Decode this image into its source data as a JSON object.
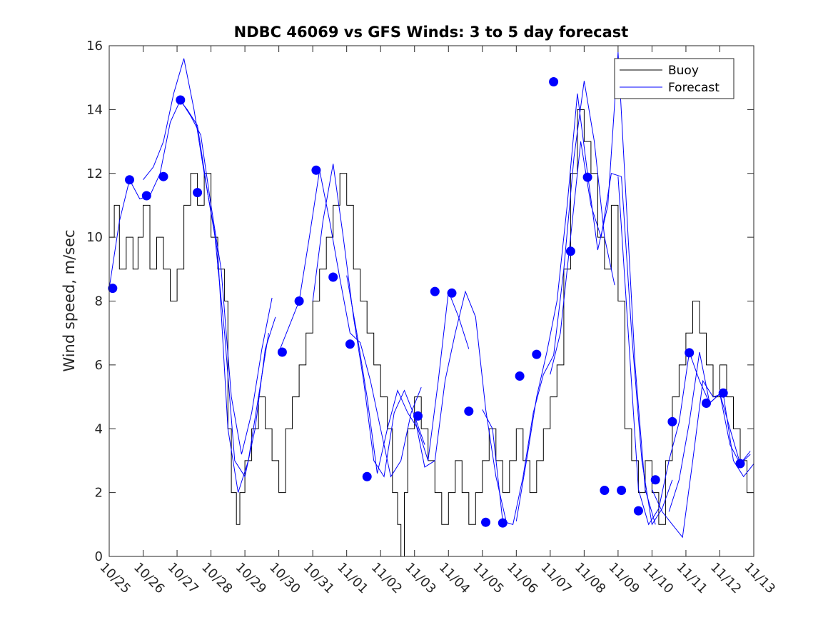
{
  "chart_data": {
    "type": "line",
    "title": "NDBC 46069 vs GFS Winds: 3 to 5 day forecast",
    "xlabel": "",
    "ylabel": "Wind speed, m/sec",
    "xlim": [
      0,
      19
    ],
    "ylim": [
      0,
      16
    ],
    "grid": false,
    "legend_position": "top-right",
    "x_tick_labels": [
      "10/25",
      "10/26",
      "10/27",
      "10/28",
      "10/29",
      "10/30",
      "10/31",
      "11/01",
      "11/02",
      "11/03",
      "11/04",
      "11/05",
      "11/06",
      "11/07",
      "11/08",
      "11/09",
      "11/10",
      "11/11",
      "11/12",
      "11/13"
    ],
    "y_ticks": [
      0,
      2,
      4,
      6,
      8,
      10,
      12,
      14,
      16
    ],
    "x_units": "days since 10/25",
    "legend": [
      {
        "name": "Buoy",
        "color": "#000000"
      },
      {
        "name": "Forecast",
        "color": "#0000ff"
      }
    ],
    "buoy_series": {
      "name": "Buoy",
      "color": "#000000",
      "points": [
        [
          0.0,
          10
        ],
        [
          0.15,
          11
        ],
        [
          0.3,
          9
        ],
        [
          0.5,
          10
        ],
        [
          0.7,
          9
        ],
        [
          0.85,
          10
        ],
        [
          1.0,
          11
        ],
        [
          1.2,
          9
        ],
        [
          1.4,
          10
        ],
        [
          1.6,
          9
        ],
        [
          1.8,
          8
        ],
        [
          2.0,
          9
        ],
        [
          2.2,
          11
        ],
        [
          2.4,
          12
        ],
        [
          2.6,
          11
        ],
        [
          2.8,
          12
        ],
        [
          3.0,
          10
        ],
        [
          3.2,
          9
        ],
        [
          3.4,
          8
        ],
        [
          3.5,
          4
        ],
        [
          3.6,
          2
        ],
        [
          3.75,
          1
        ],
        [
          3.85,
          2
        ],
        [
          4.0,
          3
        ],
        [
          4.2,
          4
        ],
        [
          4.4,
          5
        ],
        [
          4.6,
          4
        ],
        [
          4.8,
          3
        ],
        [
          5.0,
          2
        ],
        [
          5.2,
          4
        ],
        [
          5.4,
          5
        ],
        [
          5.6,
          6
        ],
        [
          5.8,
          7
        ],
        [
          6.0,
          8
        ],
        [
          6.2,
          9
        ],
        [
          6.4,
          10
        ],
        [
          6.6,
          11
        ],
        [
          6.8,
          12
        ],
        [
          7.0,
          11
        ],
        [
          7.2,
          9
        ],
        [
          7.4,
          8
        ],
        [
          7.6,
          7
        ],
        [
          7.8,
          6
        ],
        [
          8.0,
          5
        ],
        [
          8.2,
          4
        ],
        [
          8.35,
          2
        ],
        [
          8.5,
          1
        ],
        [
          8.6,
          0
        ],
        [
          8.7,
          2
        ],
        [
          8.8,
          4
        ],
        [
          9.0,
          5
        ],
        [
          9.2,
          4
        ],
        [
          9.4,
          3
        ],
        [
          9.6,
          2
        ],
        [
          9.8,
          1
        ],
        [
          10.0,
          2
        ],
        [
          10.2,
          3
        ],
        [
          10.4,
          2
        ],
        [
          10.6,
          1
        ],
        [
          10.8,
          2
        ],
        [
          11.0,
          3
        ],
        [
          11.2,
          4
        ],
        [
          11.4,
          3
        ],
        [
          11.6,
          2
        ],
        [
          11.8,
          3
        ],
        [
          12.0,
          4
        ],
        [
          12.2,
          3
        ],
        [
          12.4,
          2
        ],
        [
          12.6,
          3
        ],
        [
          12.8,
          4
        ],
        [
          13.0,
          5
        ],
        [
          13.2,
          6
        ],
        [
          13.4,
          9
        ],
        [
          13.6,
          12
        ],
        [
          13.8,
          14
        ],
        [
          14.0,
          13
        ],
        [
          14.2,
          12
        ],
        [
          14.4,
          10
        ],
        [
          14.6,
          9
        ],
        [
          14.8,
          11
        ],
        [
          15.0,
          8
        ],
        [
          15.2,
          4
        ],
        [
          15.4,
          3
        ],
        [
          15.6,
          2
        ],
        [
          15.8,
          3
        ],
        [
          16.0,
          2
        ],
        [
          16.2,
          1
        ],
        [
          16.4,
          3
        ],
        [
          16.6,
          5
        ],
        [
          16.8,
          6
        ],
        [
          17.0,
          7
        ],
        [
          17.2,
          8
        ],
        [
          17.4,
          7
        ],
        [
          17.6,
          6
        ],
        [
          17.8,
          5
        ],
        [
          18.0,
          6
        ],
        [
          18.2,
          5
        ],
        [
          18.4,
          4
        ],
        [
          18.6,
          3
        ],
        [
          18.8,
          2
        ],
        [
          19.0,
          3
        ]
      ]
    },
    "forecast_series": {
      "name": "Forecast",
      "color": "#0000ff",
      "lines": [
        [
          [
            0.0,
            8.4
          ],
          [
            0.3,
            10.5
          ],
          [
            0.6,
            11.8
          ],
          [
            0.9,
            11.2
          ],
          [
            1.2,
            11.3
          ],
          [
            1.5,
            12.0
          ],
          [
            1.8,
            13.6
          ],
          [
            2.1,
            14.3
          ],
          [
            2.4,
            13.8
          ],
          [
            2.7,
            13.2
          ],
          [
            3.0,
            11.0
          ],
          [
            3.3,
            9.0
          ],
          [
            3.6,
            5.0
          ],
          [
            3.9,
            3.2
          ],
          [
            4.2,
            4.5
          ],
          [
            4.5,
            6.5
          ],
          [
            4.8,
            8.1
          ]
        ],
        [
          [
            1.0,
            11.8
          ],
          [
            1.3,
            12.2
          ],
          [
            1.6,
            13.0
          ],
          [
            1.9,
            14.5
          ],
          [
            2.2,
            15.6
          ],
          [
            2.5,
            14.0
          ],
          [
            2.8,
            12.0
          ],
          [
            3.1,
            10.2
          ],
          [
            3.4,
            7.0
          ],
          [
            3.7,
            3.0
          ],
          [
            4.0,
            2.5
          ],
          [
            4.3,
            4.0
          ],
          [
            4.6,
            6.5
          ],
          [
            4.9,
            7.5
          ]
        ],
        [
          [
            2.0,
            14.4
          ],
          [
            2.3,
            14.0
          ],
          [
            2.6,
            13.5
          ],
          [
            2.9,
            11.4
          ],
          [
            3.2,
            9.5
          ],
          [
            3.5,
            4.0
          ],
          [
            3.8,
            2.0
          ],
          [
            4.1,
            3.0
          ],
          [
            4.4,
            5.0
          ],
          [
            4.7,
            7.0
          ]
        ],
        [
          [
            5.0,
            6.4
          ],
          [
            5.3,
            7.2
          ],
          [
            5.6,
            8.0
          ],
          [
            5.9,
            10.0
          ],
          [
            6.2,
            12.1
          ],
          [
            6.5,
            10.5
          ],
          [
            6.8,
            8.7
          ],
          [
            7.1,
            7.0
          ],
          [
            7.4,
            6.7
          ],
          [
            7.7,
            5.5
          ],
          [
            8.0,
            4.0
          ],
          [
            8.3,
            2.5
          ],
          [
            8.6,
            3.0
          ],
          [
            8.9,
            4.5
          ],
          [
            9.2,
            5.3
          ]
        ],
        [
          [
            6.0,
            8.0
          ],
          [
            6.3,
            10.5
          ],
          [
            6.6,
            12.3
          ],
          [
            6.9,
            10.0
          ],
          [
            7.2,
            7.5
          ],
          [
            7.5,
            5.5
          ],
          [
            7.8,
            3.0
          ],
          [
            8.1,
            2.5
          ],
          [
            8.4,
            4.5
          ],
          [
            8.7,
            5.2
          ],
          [
            9.0,
            4.4
          ],
          [
            9.3,
            3.5
          ]
        ],
        [
          [
            7.0,
            8.8
          ],
          [
            7.3,
            7.0
          ],
          [
            7.6,
            5.0
          ],
          [
            7.9,
            2.6
          ],
          [
            8.2,
            4.0
          ],
          [
            8.5,
            5.2
          ],
          [
            8.8,
            4.5
          ],
          [
            9.1,
            4.0
          ],
          [
            9.4,
            3.0
          ],
          [
            9.7,
            5.5
          ],
          [
            10.0,
            8.3
          ],
          [
            10.3,
            7.5
          ],
          [
            10.6,
            6.5
          ]
        ],
        [
          [
            9.0,
            4.4
          ],
          [
            9.3,
            2.8
          ],
          [
            9.6,
            3.0
          ],
          [
            9.9,
            5.5
          ],
          [
            10.2,
            7.0
          ],
          [
            10.5,
            8.3
          ],
          [
            10.8,
            7.5
          ],
          [
            11.1,
            4.6
          ],
          [
            11.4,
            2.5
          ],
          [
            11.7,
            1.1
          ]
        ],
        [
          [
            11.0,
            4.6
          ],
          [
            11.3,
            4.0
          ],
          [
            11.6,
            1.1
          ],
          [
            11.9,
            1.0
          ],
          [
            12.2,
            2.5
          ],
          [
            12.5,
            4.5
          ],
          [
            12.8,
            5.7
          ],
          [
            13.1,
            6.3
          ],
          [
            13.4,
            9.0
          ],
          [
            13.7,
            12.5
          ],
          [
            14.0,
            14.9
          ],
          [
            14.3,
            13.0
          ],
          [
            14.6,
            10.0
          ],
          [
            14.9,
            8.5
          ]
        ],
        [
          [
            12.0,
            1.1
          ],
          [
            12.3,
            3.0
          ],
          [
            12.6,
            5.0
          ],
          [
            12.9,
            6.4
          ],
          [
            13.2,
            8.0
          ],
          [
            13.5,
            11.0
          ],
          [
            13.8,
            14.5
          ],
          [
            14.1,
            12.0
          ],
          [
            14.4,
            9.6
          ],
          [
            14.7,
            11.0
          ],
          [
            15.0,
            15.8
          ],
          [
            15.2,
            11.9
          ],
          [
            15.5,
            6.0
          ],
          [
            15.8,
            2.1
          ],
          [
            16.1,
            1.0
          ]
        ],
        [
          [
            13.0,
            5.7
          ],
          [
            13.3,
            7.0
          ],
          [
            13.6,
            10.0
          ],
          [
            13.9,
            13.0
          ],
          [
            14.2,
            11.0
          ],
          [
            14.5,
            10.0
          ],
          [
            14.8,
            12.0
          ],
          [
            15.1,
            11.9
          ],
          [
            15.4,
            7.0
          ],
          [
            15.7,
            3.0
          ],
          [
            16.0,
            1.0
          ],
          [
            16.3,
            1.5
          ],
          [
            16.6,
            2.4
          ]
        ],
        [
          [
            15.0,
            11.9
          ],
          [
            15.3,
            7.0
          ],
          [
            15.6,
            2.1
          ],
          [
            15.9,
            1.0
          ],
          [
            16.2,
            1.5
          ],
          [
            16.5,
            3.0
          ],
          [
            16.8,
            4.2
          ],
          [
            17.1,
            6.4
          ],
          [
            17.4,
            5.5
          ],
          [
            17.7,
            4.8
          ],
          [
            18.0,
            5.1
          ],
          [
            18.3,
            3.5
          ],
          [
            18.6,
            2.9
          ],
          [
            18.9,
            3.3
          ]
        ],
        [
          [
            16.0,
            2.1
          ],
          [
            16.3,
            1.4
          ],
          [
            16.6,
            1.0
          ],
          [
            16.9,
            0.6
          ],
          [
            17.2,
            3.0
          ],
          [
            17.5,
            5.5
          ],
          [
            17.8,
            5.0
          ],
          [
            18.1,
            5.1
          ],
          [
            18.4,
            3.0
          ],
          [
            18.7,
            2.5
          ],
          [
            19.0,
            2.9
          ]
        ],
        [
          [
            16.5,
            1.4
          ],
          [
            16.8,
            2.4
          ],
          [
            17.1,
            4.2
          ],
          [
            17.4,
            6.4
          ],
          [
            17.7,
            4.8
          ],
          [
            18.0,
            5.1
          ],
          [
            18.3,
            4.0
          ],
          [
            18.6,
            2.9
          ],
          [
            18.9,
            3.2
          ]
        ]
      ],
      "markers": [
        [
          0.1,
          8.4
        ],
        [
          0.6,
          11.8
        ],
        [
          1.1,
          11.3
        ],
        [
          1.6,
          11.9
        ],
        [
          2.1,
          14.3
        ],
        [
          2.6,
          11.4
        ],
        [
          5.1,
          6.4
        ],
        [
          5.6,
          8.0
        ],
        [
          6.1,
          12.1
        ],
        [
          6.6,
          8.75
        ],
        [
          7.1,
          6.65
        ],
        [
          7.6,
          2.5
        ],
        [
          9.1,
          4.4
        ],
        [
          9.6,
          8.3
        ],
        [
          10.1,
          8.25
        ],
        [
          10.6,
          4.55
        ],
        [
          11.1,
          1.07
        ],
        [
          11.6,
          1.05
        ],
        [
          12.1,
          5.65
        ],
        [
          12.6,
          6.33
        ],
        [
          13.1,
          14.87
        ],
        [
          13.6,
          9.56
        ],
        [
          14.1,
          11.88
        ],
        [
          14.6,
          2.07
        ],
        [
          15.1,
          2.07
        ],
        [
          15.6,
          1.43
        ],
        [
          16.1,
          2.4
        ],
        [
          16.6,
          4.22
        ],
        [
          17.1,
          6.38
        ],
        [
          17.6,
          4.8
        ],
        [
          18.1,
          5.12
        ],
        [
          18.6,
          2.91
        ]
      ]
    }
  }
}
